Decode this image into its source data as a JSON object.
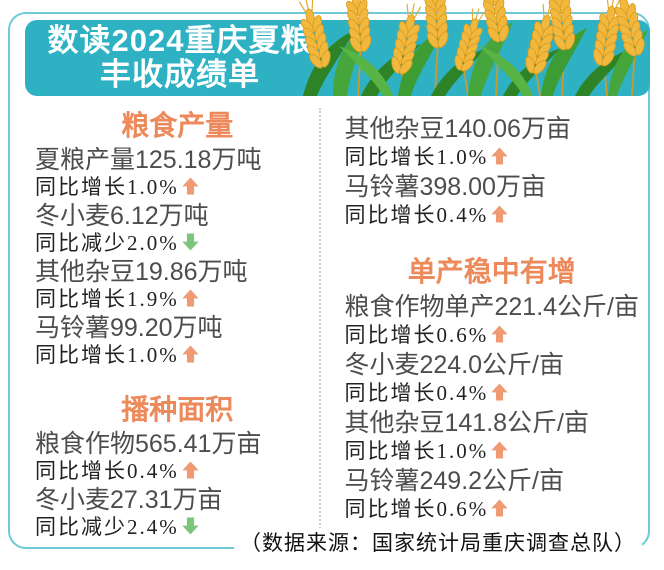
{
  "title": {
    "line1": "数读2024重庆夏粮",
    "line2": "丰收成绩单"
  },
  "columns": [
    {
      "items": [
        {
          "type": "heading",
          "text": "粮食产量"
        },
        {
          "type": "value",
          "text": "夏粮产量125.18万吨"
        },
        {
          "type": "delta",
          "text": "同比增长1.0%",
          "direction": "up"
        },
        {
          "type": "value",
          "text": "冬小麦6.12万吨"
        },
        {
          "type": "delta",
          "text": "同比减少2.0%",
          "direction": "down"
        },
        {
          "type": "value",
          "text": "其他杂豆19.86万吨"
        },
        {
          "type": "delta",
          "text": "同比增长1.9%",
          "direction": "up"
        },
        {
          "type": "value",
          "text": "马铃薯99.20万吨"
        },
        {
          "type": "delta",
          "text": "同比增长1.0%",
          "direction": "up"
        },
        {
          "type": "heading",
          "text": "播种面积",
          "gap_before": true
        },
        {
          "type": "value",
          "text": "粮食作物565.41万亩"
        },
        {
          "type": "delta",
          "text": "同比增长0.4%",
          "direction": "up"
        },
        {
          "type": "value",
          "text": "冬小麦27.31万亩"
        },
        {
          "type": "delta",
          "text": "同比减少2.4%",
          "direction": "down"
        }
      ]
    },
    {
      "items": [
        {
          "type": "value",
          "text": "其他杂豆140.06万亩"
        },
        {
          "type": "delta",
          "text": "同比增长1.0%",
          "direction": "up"
        },
        {
          "type": "value",
          "text": "马铃薯398.00万亩"
        },
        {
          "type": "delta",
          "text": "同比增长0.4%",
          "direction": "up"
        },
        {
          "type": "heading",
          "text": "单产稳中有增",
          "gap_before": true
        },
        {
          "type": "value",
          "text": "粮食作物单产221.4公斤/亩"
        },
        {
          "type": "delta",
          "text": "同比增长0.6%",
          "direction": "up"
        },
        {
          "type": "value",
          "text": "冬小麦224.0公斤/亩"
        },
        {
          "type": "delta",
          "text": "同比增长0.4%",
          "direction": "up"
        },
        {
          "type": "value",
          "text": "其他杂豆141.8公斤/亩"
        },
        {
          "type": "delta",
          "text": "同比增长1.0%",
          "direction": "up"
        },
        {
          "type": "value",
          "text": "马铃薯249.2公斤/亩"
        },
        {
          "type": "delta",
          "text": "同比增长0.6%",
          "direction": "up"
        }
      ]
    }
  ],
  "footer": {
    "source": "（数据来源：国家统计局重庆调查总队）"
  },
  "icons": {
    "up": "increase-arrow-icon",
    "down": "decrease-arrow-icon",
    "decoration": "wheat-illustration"
  },
  "colors": {
    "banner_teal": "#2fb1c4",
    "frame_teal": "#6ec9d9",
    "heading_orange": "#ed8a5c",
    "up_arrow": "#f09a74",
    "down_arrow": "#7dc47c",
    "value_text": "#4d4d4d",
    "delta_text": "#222222",
    "title_text": "#ffffff",
    "footer_text": "#111111",
    "wheat_gold": "#f2b83e",
    "leaf_green": "#2e8327"
  }
}
